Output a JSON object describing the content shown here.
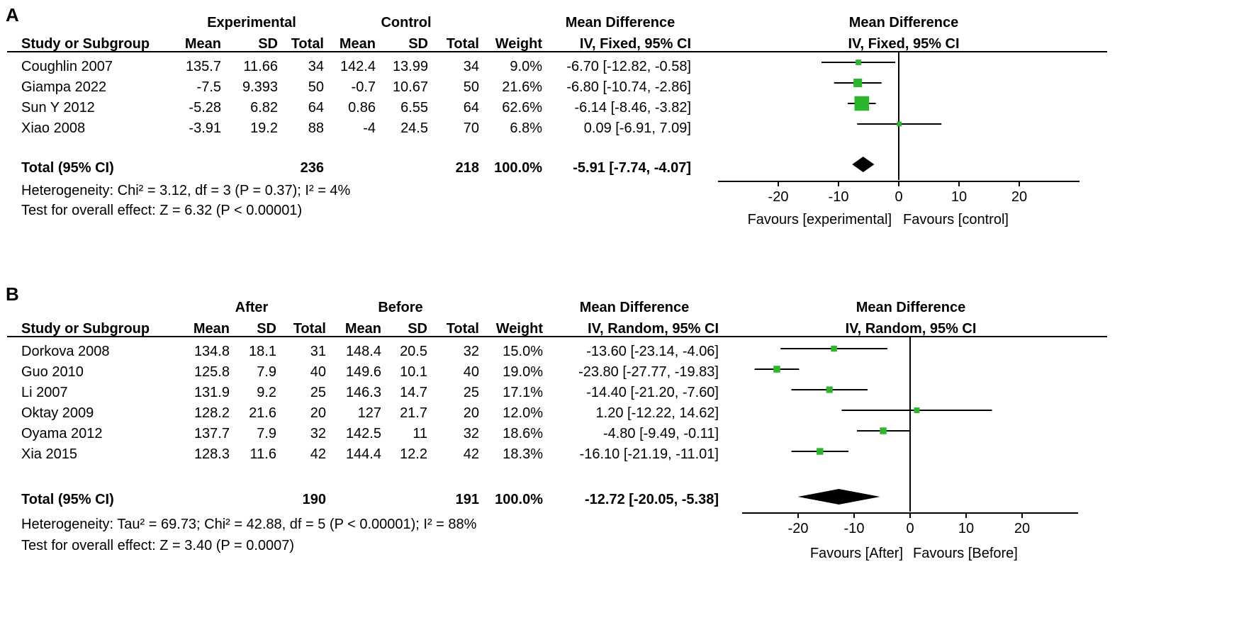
{
  "chart_data": [
    {
      "type": "forest",
      "panel_label": "A",
      "group1_label": "Experimental",
      "group2_label": "Control",
      "effect_header": "Mean Difference",
      "effect_subheader": "IV, Fixed, 95% CI",
      "plot_header": "Mean Difference",
      "plot_subheader": "IV, Fixed, 95% CI",
      "col_headers": {
        "study": "Study or Subgroup",
        "mean1": "Mean",
        "sd1": "SD",
        "total1": "Total",
        "mean2": "Mean",
        "sd2": "SD",
        "total2": "Total",
        "weight": "Weight",
        "ci": "IV, Fixed, 95% CI"
      },
      "studies": [
        {
          "name": "Coughlin 2007",
          "mean1": "135.7",
          "sd1": "11.66",
          "total1": "34",
          "mean2": "142.4",
          "sd2": "13.99",
          "total2": "34",
          "weight": "9.0%",
          "ci_text": "-6.70 [-12.82, -0.58]",
          "est": -6.7,
          "lo": -12.82,
          "hi": -0.58,
          "w": 9.0
        },
        {
          "name": "Giampa 2022",
          "mean1": "-7.5",
          "sd1": "9.393",
          "total1": "50",
          "mean2": "-0.7",
          "sd2": "10.67",
          "total2": "50",
          "weight": "21.6%",
          "ci_text": "-6.80 [-10.74, -2.86]",
          "est": -6.8,
          "lo": -10.74,
          "hi": -2.86,
          "w": 21.6
        },
        {
          "name": "Sun Y 2012",
          "mean1": "-5.28",
          "sd1": "6.82",
          "total1": "64",
          "mean2": "0.86",
          "sd2": "6.55",
          "total2": "64",
          "weight": "62.6%",
          "ci_text": "-6.14 [-8.46, -3.82]",
          "est": -6.14,
          "lo": -8.46,
          "hi": -3.82,
          "w": 62.6
        },
        {
          "name": "Xiao 2008",
          "mean1": "-3.91",
          "sd1": "19.2",
          "total1": "88",
          "mean2": "-4",
          "sd2": "24.5",
          "total2": "70",
          "weight": "6.8%",
          "ci_text": "0.09 [-6.91, 7.09]",
          "est": 0.09,
          "lo": -6.91,
          "hi": 7.09,
          "w": 6.8
        }
      ],
      "total": {
        "label": "Total (95% CI)",
        "total1": "236",
        "total2": "218",
        "weight": "100.0%",
        "ci_text": "-5.91 [-7.74, -4.07]",
        "est": -5.91,
        "lo": -7.74,
        "hi": -4.07
      },
      "heterogeneity": "Heterogeneity: Chi² = 3.12, df = 3 (P = 0.37); I² = 4%",
      "overall_effect": "Test for overall effect: Z = 6.32 (P < 0.00001)",
      "xlim": [
        -30,
        30
      ],
      "xticks": [
        -20,
        -10,
        0,
        10,
        20
      ],
      "xtick_labels": [
        "-20",
        "-10",
        "0",
        "10",
        "20"
      ],
      "favours_left": "Favours [experimental]",
      "favours_right": "Favours [control]",
      "marker_color": "#2db52d"
    },
    {
      "type": "forest",
      "panel_label": "B",
      "group1_label": "After",
      "group2_label": "Before",
      "effect_header": "Mean Difference",
      "effect_subheader": "IV, Random, 95% CI",
      "plot_header": "Mean Difference",
      "plot_subheader": "IV, Random, 95% CI",
      "col_headers": {
        "study": "Study or Subgroup",
        "mean1": "Mean",
        "sd1": "SD",
        "total1": "Total",
        "mean2": "Mean",
        "sd2": "SD",
        "total2": "Total",
        "weight": "Weight",
        "ci": "IV, Random, 95% CI"
      },
      "studies": [
        {
          "name": "Dorkova 2008",
          "mean1": "134.8",
          "sd1": "18.1",
          "total1": "31",
          "mean2": "148.4",
          "sd2": "20.5",
          "total2": "32",
          "weight": "15.0%",
          "ci_text": "-13.60 [-23.14, -4.06]",
          "est": -13.6,
          "lo": -23.14,
          "hi": -4.06,
          "w": 15.0
        },
        {
          "name": "Guo 2010",
          "mean1": "125.8",
          "sd1": "7.9",
          "total1": "40",
          "mean2": "149.6",
          "sd2": "10.1",
          "total2": "40",
          "weight": "19.0%",
          "ci_text": "-23.80 [-27.77, -19.83]",
          "est": -23.8,
          "lo": -27.77,
          "hi": -19.83,
          "w": 19.0
        },
        {
          "name": "Li 2007",
          "mean1": "131.9",
          "sd1": "9.2",
          "total1": "25",
          "mean2": "146.3",
          "sd2": "14.7",
          "total2": "25",
          "weight": "17.1%",
          "ci_text": "-14.40 [-21.20, -7.60]",
          "est": -14.4,
          "lo": -21.2,
          "hi": -7.6,
          "w": 17.1
        },
        {
          "name": "Oktay 2009",
          "mean1": "128.2",
          "sd1": "21.6",
          "total1": "20",
          "mean2": "127",
          "sd2": "21.7",
          "total2": "20",
          "weight": "12.0%",
          "ci_text": "1.20 [-12.22, 14.62]",
          "est": 1.2,
          "lo": -12.22,
          "hi": 14.62,
          "w": 12.0
        },
        {
          "name": "Oyama 2012",
          "mean1": "137.7",
          "sd1": "7.9",
          "total1": "32",
          "mean2": "142.5",
          "sd2": "11",
          "total2": "32",
          "weight": "18.6%",
          "ci_text": "-4.80 [-9.49, -0.11]",
          "est": -4.8,
          "lo": -9.49,
          "hi": -0.11,
          "w": 18.6
        },
        {
          "name": "Xia 2015",
          "mean1": "128.3",
          "sd1": "11.6",
          "total1": "42",
          "mean2": "144.4",
          "sd2": "12.2",
          "total2": "42",
          "weight": "18.3%",
          "ci_text": "-16.10 [-21.19, -11.01]",
          "est": -16.1,
          "lo": -21.19,
          "hi": -11.01,
          "w": 18.3
        }
      ],
      "total": {
        "label": "Total (95% CI)",
        "total1": "190",
        "total2": "191",
        "weight": "100.0%",
        "ci_text": "-12.72 [-20.05, -5.38]",
        "est": -12.72,
        "lo": -20.05,
        "hi": -5.38
      },
      "heterogeneity": "Heterogeneity: Tau² = 69.73; Chi² = 42.88, df = 5 (P < 0.00001); I² = 88%",
      "overall_effect": "Test for overall effect: Z = 3.40 (P = 0.0007)",
      "xlim": [
        -30,
        30
      ],
      "xticks": [
        -20,
        -10,
        0,
        10,
        20
      ],
      "xtick_labels": [
        "-20",
        "-10",
        "0",
        "10",
        "20"
      ],
      "favours_left": "Favours [After]",
      "favours_right": "Favours [Before]",
      "marker_color": "#2db52d"
    }
  ]
}
